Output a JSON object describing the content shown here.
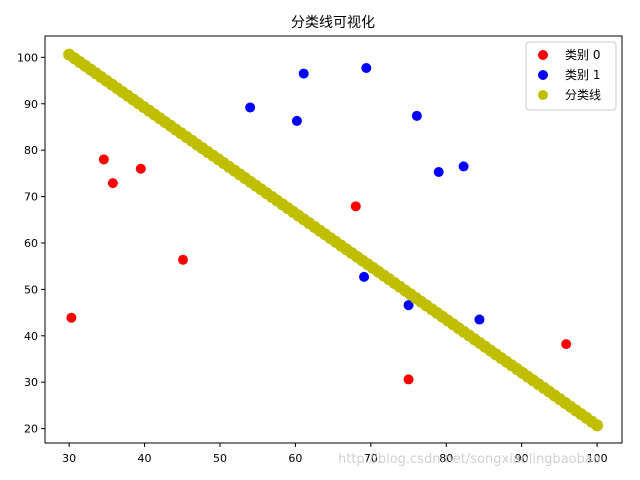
{
  "chart_data": {
    "type": "scatter",
    "title": "分类线可视化",
    "xlabel": "",
    "ylabel": "",
    "xlim": [
      26.8,
      103.3
    ],
    "ylim": [
      16.9,
      104.6
    ],
    "xticks": [
      30,
      40,
      50,
      60,
      70,
      80,
      90,
      100
    ],
    "yticks": [
      20,
      30,
      40,
      50,
      60,
      70,
      80,
      90,
      100
    ],
    "grid": false,
    "legend_position": "top-right",
    "series": [
      {
        "name": "类别 0",
        "color": "#ff0000",
        "kind": "points",
        "points": [
          [
            30.3,
            43.9
          ],
          [
            34.6,
            78.0
          ],
          [
            35.8,
            72.9
          ],
          [
            39.5,
            76.0
          ],
          [
            45.1,
            56.4
          ],
          [
            68.0,
            67.9
          ],
          [
            75.0,
            30.6
          ],
          [
            95.9,
            38.2
          ]
        ]
      },
      {
        "name": "类别 1",
        "color": "#0000ff",
        "kind": "points",
        "points": [
          [
            54.0,
            89.2
          ],
          [
            60.2,
            86.3
          ],
          [
            61.1,
            96.5
          ],
          [
            69.4,
            97.7
          ],
          [
            76.1,
            87.4
          ],
          [
            79.0,
            75.3
          ],
          [
            82.3,
            76.5
          ],
          [
            69.1,
            52.7
          ],
          [
            75.0,
            46.6
          ],
          [
            84.4,
            43.5
          ]
        ]
      },
      {
        "name": "分类线",
        "color": "#bfbf00",
        "kind": "line",
        "x_range": [
          30,
          100
        ],
        "y_at_start": 100.6,
        "y_at_end": 20.7
      }
    ]
  },
  "watermark": "http://blog.csdn.net/songxiaolingbaobao"
}
